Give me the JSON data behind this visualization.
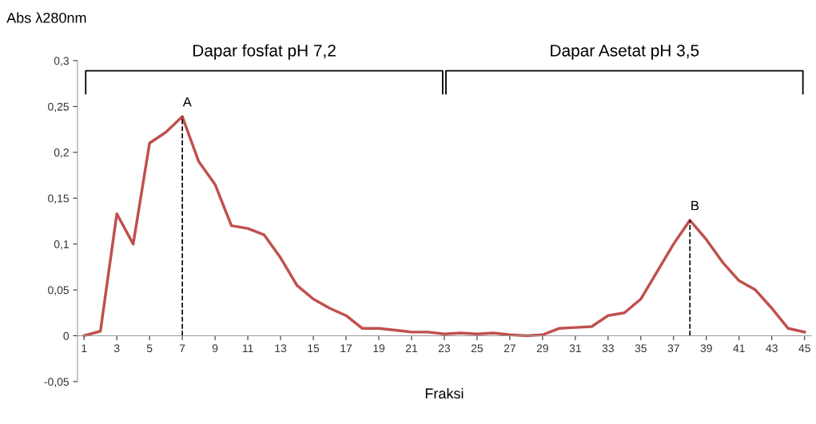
{
  "chart_data": {
    "type": "line",
    "xlabel": "Fraksi",
    "ylabel": "Abs λ280nm",
    "x": [
      1,
      2,
      3,
      4,
      5,
      6,
      7,
      8,
      9,
      10,
      11,
      12,
      13,
      14,
      15,
      16,
      17,
      18,
      19,
      20,
      21,
      22,
      23,
      24,
      25,
      26,
      27,
      28,
      29,
      30,
      31,
      32,
      33,
      34,
      35,
      36,
      37,
      38,
      39,
      40,
      41,
      42,
      43,
      44,
      45
    ],
    "series": [
      {
        "color": "#c0504d",
        "values": [
          0,
          0.005,
          0.133,
          0.1,
          0.21,
          0.222,
          0.239,
          0.19,
          0.165,
          0.12,
          0.117,
          0.11,
          0.085,
          0.055,
          0.04,
          0.03,
          0.022,
          0.008,
          0.008,
          0.006,
          0.004,
          0.004,
          0.002,
          0.003,
          0.002,
          0.003,
          0.001,
          0,
          0.001,
          0.008,
          0.009,
          0.01,
          0.022,
          0.025,
          0.04,
          0.07,
          0.1,
          0.126,
          0.105,
          0.08,
          0.06,
          0.05,
          0.03,
          0.008,
          0.004
        ]
      }
    ],
    "xlim": [
      0.6,
      45.4
    ],
    "xticks": [
      1,
      3,
      5,
      7,
      9,
      11,
      13,
      15,
      17,
      19,
      21,
      23,
      25,
      27,
      29,
      31,
      33,
      35,
      37,
      39,
      41,
      43,
      45
    ],
    "ylim": [
      -0.05,
      0.3
    ],
    "yticks": [
      {
        "value": -0.05,
        "label": "-0,05"
      },
      0,
      {
        "value": 0.05,
        "label": "0,05"
      },
      {
        "value": 0.1,
        "label": "0,1"
      },
      {
        "value": 0.15,
        "label": "0,15"
      },
      {
        "value": 0.2,
        "label": "0,2"
      },
      {
        "value": 0.25,
        "label": "0,25"
      },
      {
        "value": 0.3,
        "label": "0,3"
      }
    ],
    "annotations": [
      {
        "text": "A",
        "x": 7,
        "y": 0.239
      },
      {
        "text": "B",
        "x": 38,
        "y": 0.126
      },
      "Dapar fosfat pH 7,2",
      "Dapar Asetat pH 3,5"
    ],
    "grid": false,
    "legend": false,
    "marker": "none",
    "line_style": "solid"
  }
}
